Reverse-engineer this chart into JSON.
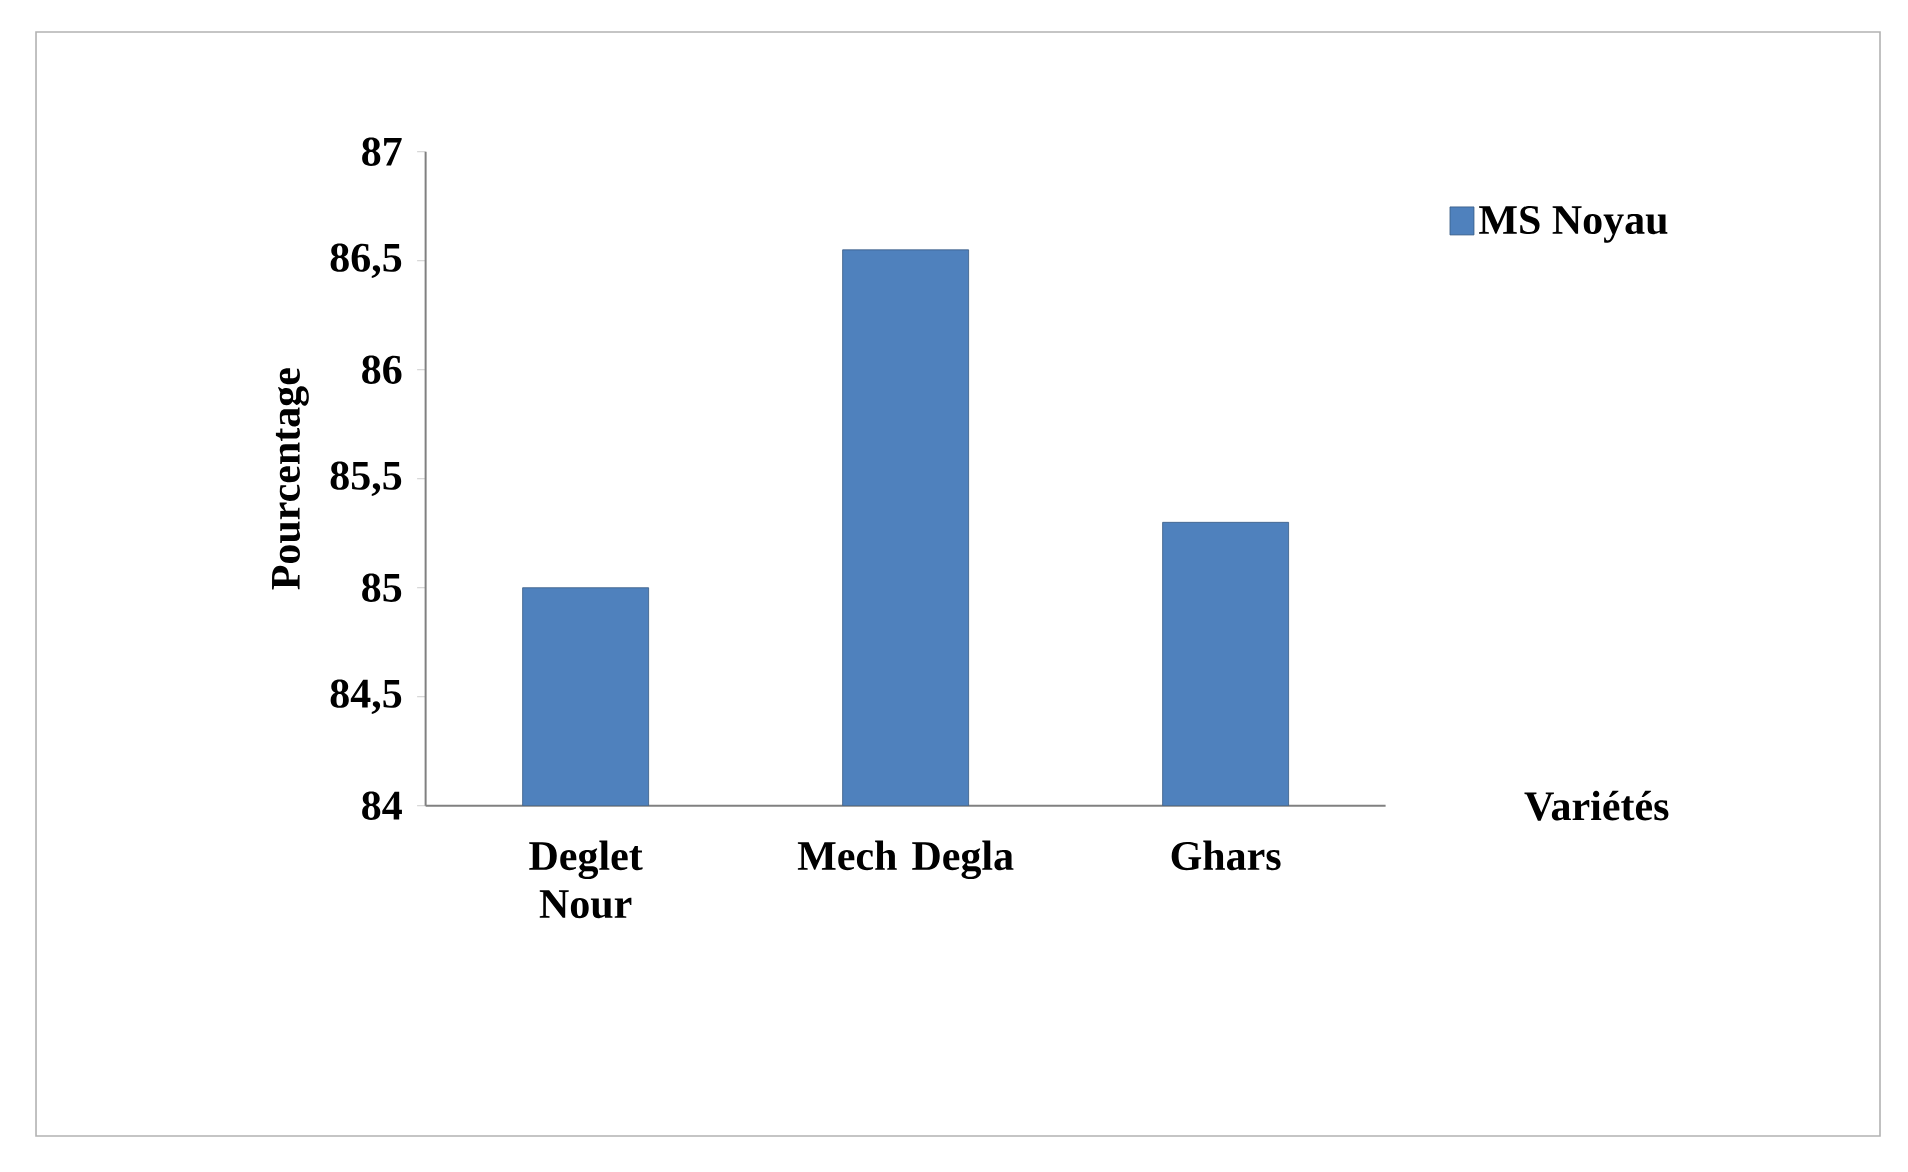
{
  "chart_data": {
    "type": "bar",
    "categories": [
      "Deglet Nour",
      "Mech Degla",
      "Ghars"
    ],
    "series": [
      {
        "name": "MS Noyau",
        "color": "#4f81bd",
        "values": [
          85.0,
          86.55,
          85.3
        ]
      }
    ],
    "xlabel": "Variétés",
    "ylabel": "Pourcentage",
    "ylim": [
      84,
      87
    ],
    "yticks": [
      84,
      {
        "value": 84.5,
        "label": "84,5"
      },
      85,
      {
        "value": 85.5,
        "label": "85,5"
      },
      86,
      {
        "value": 86.5,
        "label": "86,5"
      },
      87
    ],
    "legend": "top right",
    "grid": false
  }
}
